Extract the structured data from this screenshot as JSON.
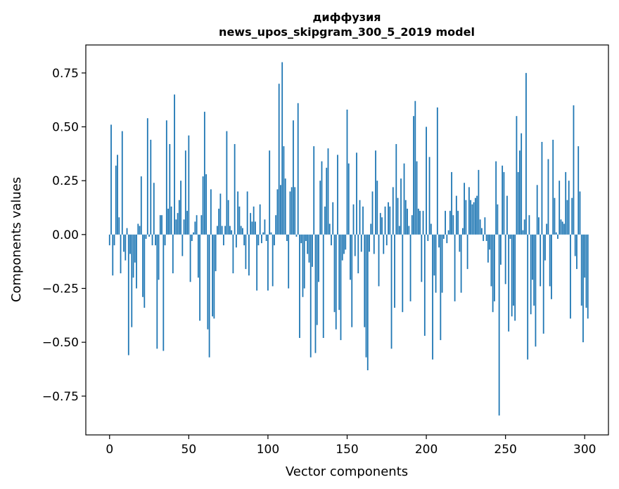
{
  "chart_data": {
    "type": "bar",
    "title_line1": "диффузия",
    "title_line2": "news_upos_skipgram_300_5_2019 model",
    "xlabel": "Vector components",
    "ylabel": "Components values",
    "xlim": [
      -15,
      315
    ],
    "ylim": [
      -0.93,
      0.88
    ],
    "xticks": [
      0,
      50,
      100,
      150,
      200,
      250,
      300
    ],
    "xtick_labels": [
      "0",
      "50",
      "100",
      "150",
      "200",
      "250",
      "300"
    ],
    "yticks": [
      0.75,
      0.5,
      0.25,
      0.0,
      -0.25,
      -0.5,
      -0.75
    ],
    "ytick_labels": [
      "0.75",
      "0.50",
      "0.25",
      "0.00",
      "−0.25",
      "−0.50",
      "−0.75"
    ],
    "bar_color": "#1f77b4",
    "grid": false,
    "values": [
      -0.05,
      0.51,
      -0.19,
      -0.05,
      0.32,
      0.37,
      0.08,
      -0.18,
      0.48,
      -0.08,
      -0.12,
      0.03,
      -0.56,
      -0.09,
      -0.43,
      -0.2,
      -0.13,
      -0.25,
      0.05,
      0.04,
      0.27,
      -0.29,
      -0.34,
      -0.02,
      0.54,
      -0.01,
      0.44,
      -0.05,
      0.24,
      -0.05,
      -0.53,
      -0.21,
      0.09,
      0.09,
      -0.54,
      -0.05,
      0.53,
      0.12,
      0.42,
      0.13,
      -0.18,
      0.65,
      0.07,
      0.1,
      0.16,
      0.25,
      -0.1,
      0.07,
      0.39,
      0.11,
      0.46,
      -0.22,
      -0.03,
      0.01,
      0.06,
      0.09,
      -0.2,
      -0.4,
      0.09,
      0.27,
      0.57,
      0.28,
      -0.44,
      -0.57,
      0.21,
      -0.38,
      -0.39,
      -0.17,
      0.04,
      0.12,
      0.19,
      0.04,
      -0.05,
      0.04,
      0.48,
      0.16,
      0.04,
      0.02,
      -0.18,
      0.42,
      -0.06,
      0.2,
      0.13,
      0.04,
      0.03,
      -0.05,
      -0.16,
      0.2,
      -0.19,
      0.1,
      0.06,
      0.13,
      0.06,
      -0.26,
      -0.05,
      0.14,
      -0.04,
      0.01,
      0.07,
      -0.03,
      -0.26,
      0.39,
      0.01,
      -0.24,
      -0.05,
      0.09,
      0.21,
      0.7,
      0.23,
      0.8,
      0.41,
      0.26,
      -0.03,
      -0.25,
      0.2,
      0.22,
      0.53,
      0.22,
      -0.01,
      0.61,
      -0.48,
      -0.04,
      -0.29,
      -0.25,
      -0.03,
      -0.09,
      -0.13,
      -0.57,
      -0.15,
      0.41,
      -0.55,
      -0.42,
      -0.22,
      0.25,
      0.34,
      -0.48,
      0.13,
      0.31,
      0.4,
      0.05,
      -0.05,
      0.15,
      -0.36,
      -0.44,
      0.37,
      -0.35,
      -0.49,
      -0.12,
      -0.09,
      -0.07,
      0.58,
      0.33,
      -0.21,
      -0.43,
      0.14,
      -0.1,
      0.38,
      -0.18,
      0.16,
      -0.08,
      0.13,
      -0.43,
      -0.57,
      -0.63,
      -0.08,
      0.05,
      0.2,
      -0.09,
      0.39,
      0.25,
      -0.24,
      0.1,
      0.08,
      -0.09,
      0.13,
      -0.05,
      0.15,
      0.13,
      -0.53,
      0.22,
      -0.34,
      0.42,
      0.17,
      0.04,
      0.26,
      -0.36,
      0.33,
      0.16,
      0.12,
      0.04,
      -0.31,
      0.09,
      0.55,
      0.62,
      0.34,
      0.12,
      0.11,
      -0.22,
      0.11,
      -0.47,
      0.5,
      -0.03,
      0.36,
      0.05,
      -0.58,
      -0.19,
      -0.27,
      0.59,
      -0.06,
      -0.49,
      -0.27,
      -0.02,
      0.11,
      -0.04,
      0.02,
      0.11,
      0.29,
      0.09,
      -0.31,
      0.18,
      0.11,
      -0.08,
      -0.27,
      0.03,
      0.24,
      0.16,
      -0.16,
      0.22,
      0.16,
      0.14,
      0.15,
      0.17,
      0.18,
      0.3,
      0.07,
      0.03,
      -0.03,
      0.08,
      -0.03,
      -0.13,
      -0.07,
      -0.24,
      -0.36,
      -0.31,
      0.34,
      0.14,
      -0.84,
      -0.14,
      0.32,
      0.29,
      -0.23,
      0.18,
      -0.45,
      -0.02,
      -0.38,
      -0.33,
      -0.4,
      0.55,
      0.29,
      0.39,
      0.47,
      0.02,
      0.07,
      0.75,
      -0.58,
      0.09,
      -0.37,
      -0.21,
      -0.33,
      -0.52,
      0.23,
      0.08,
      -0.24,
      0.43,
      -0.46,
      -0.12,
      0.05,
      0.35,
      -0.24,
      -0.3,
      0.44,
      0.17,
      0.01,
      -0.02,
      0.25,
      0.07,
      0.06,
      0.05,
      0.29,
      0.16,
      0.25,
      -0.39,
      0.17,
      0.6,
      -0.1,
      -0.16,
      0.41,
      0.2,
      -0.33,
      -0.5,
      -0.2,
      -0.34,
      -0.39
    ]
  }
}
